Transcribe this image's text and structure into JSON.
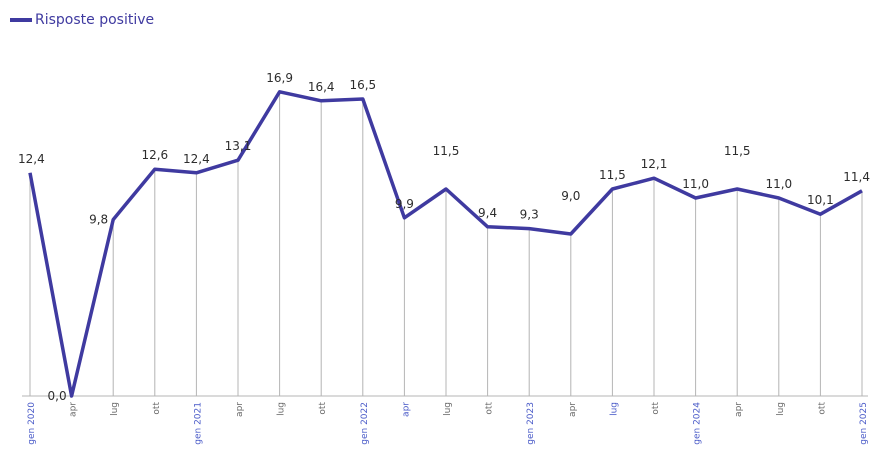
{
  "chart_data": {
    "type": "line",
    "series": [
      {
        "name": "Risposte positive",
        "values": [
          12.4,
          0.0,
          9.8,
          12.6,
          12.4,
          13.1,
          16.9,
          16.4,
          16.5,
          9.9,
          11.5,
          9.4,
          9.3,
          9.0,
          11.5,
          12.1,
          11.0,
          11.5,
          11.0,
          10.1,
          11.4
        ]
      }
    ],
    "categories": [
      "gen 2020",
      "apr",
      "lug",
      "ott",
      "gen 2021",
      "apr",
      "lug",
      "ott",
      "gen 2022",
      "apr",
      "lug",
      "ott",
      "gen 2023",
      "apr",
      "lug",
      "ott",
      "gen 2024",
      "apr",
      "lug",
      "ott",
      "gen 2025"
    ],
    "data_labels": [
      "12,4",
      "0,0",
      "9,8",
      "12,6",
      "12,4",
      "13,1",
      "16,9",
      "16,4",
      "16,5",
      "9,9",
      "11,5",
      "9,4",
      "9,3",
      "9,0",
      "11,5",
      "12,1",
      "11,0",
      "11,5",
      "11,0",
      "10,1",
      "11,4"
    ],
    "label_positions": [
      "above",
      "left",
      "left",
      "above",
      "above",
      "above",
      "above",
      "above",
      "above",
      "above",
      "high",
      "above",
      "above",
      "high",
      "above",
      "above",
      "above",
      "high",
      "above",
      "above",
      "above"
    ],
    "ylim": [
      0,
      18
    ],
    "grid": "vertical",
    "legend": "top-left",
    "title": "",
    "xlabel": "",
    "ylabel": "",
    "colors": {
      "line": "#3f3aa0",
      "label": "#2d2d2d",
      "gridline": "#b4b4b4",
      "tick_default": "#6a6a6a",
      "tick_highlight": "#4a5bc8"
    },
    "highlighted_ticks": [
      0,
      4,
      8,
      9,
      12,
      14,
      16,
      20
    ]
  }
}
